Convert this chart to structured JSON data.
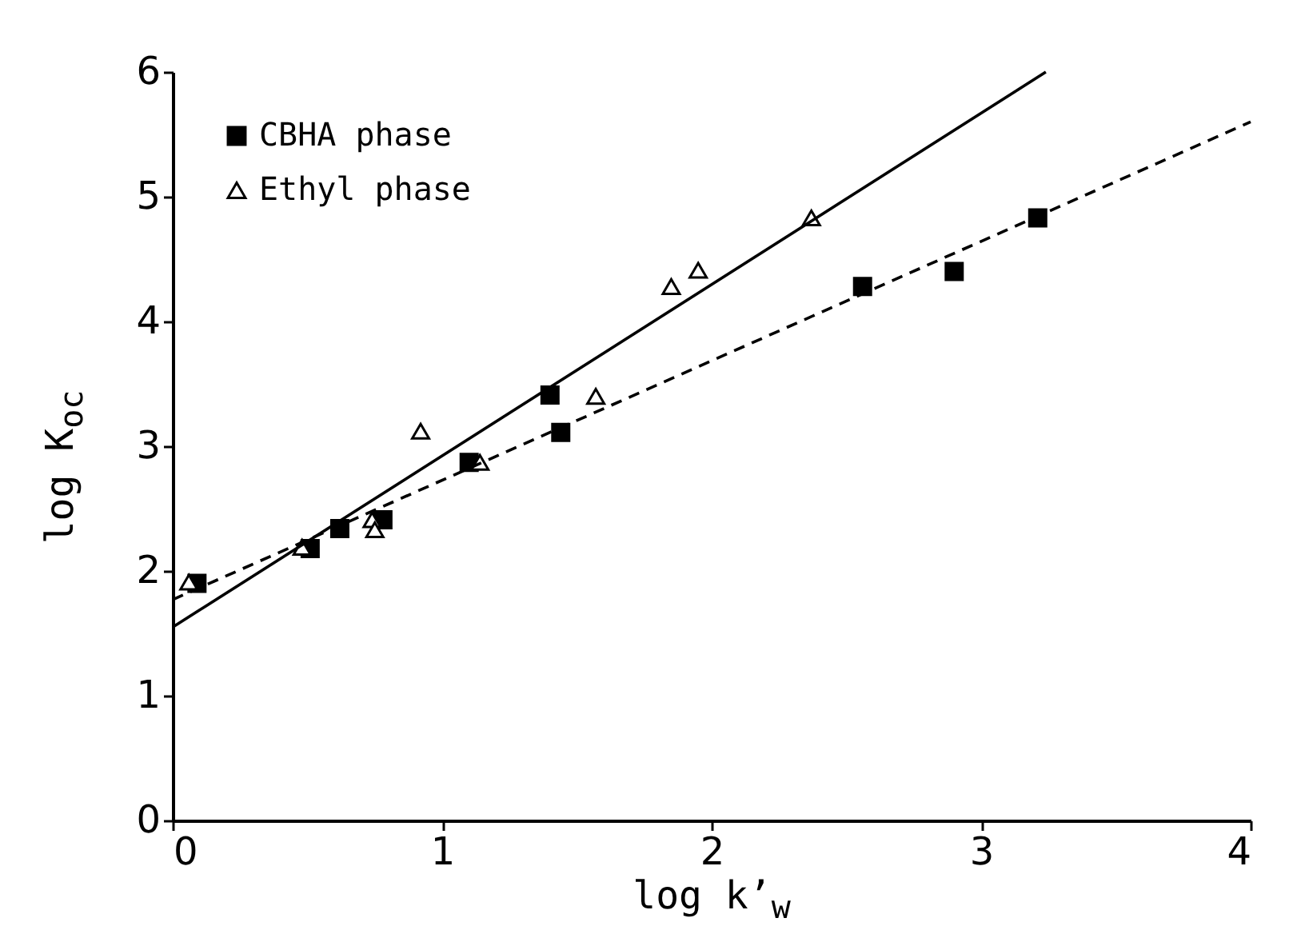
{
  "chart_data": {
    "type": "scatter",
    "xlabel": "log k’$_{w}$",
    "ylabel": "log K$_{oc}$",
    "xlim": [
      0,
      4
    ],
    "ylim": [
      0,
      6
    ],
    "xticks": [
      0,
      1,
      2,
      3,
      4
    ],
    "yticks": [
      0,
      1,
      2,
      3,
      4,
      5,
      6
    ],
    "grid": false,
    "legend": "top left",
    "series": [
      {
        "name": "CBHA phase",
        "color": "#000000",
        "marker": "square",
        "x": [
          0.09,
          0.51,
          0.62,
          0.78,
          1.1,
          1.4,
          1.44,
          2.56,
          2.9,
          3.21
        ],
        "values": [
          1.9,
          2.18,
          2.34,
          2.41,
          2.87,
          3.41,
          3.11,
          4.28,
          4.4,
          4.83
        ]
      },
      {
        "name": "Ethyl phase",
        "color": "#000000",
        "marker": "triangle",
        "x": [
          0.06,
          0.48,
          0.74,
          0.75,
          0.92,
          1.14,
          1.57,
          1.85,
          1.95,
          2.37
        ],
        "values": [
          1.91,
          2.19,
          2.41,
          2.33,
          3.12,
          2.87,
          3.4,
          4.28,
          4.41,
          4.83
        ]
      },
      {
        "type": "line",
        "color": "#000000",
        "line_style": "solid",
        "marker": "none",
        "x": [
          0,
          3.24
        ],
        "values": [
          1.55,
          6.0
        ]
      },
      {
        "type": "line",
        "color": "#000000",
        "line_style": "dashed",
        "marker": "none",
        "x": [
          0,
          4
        ],
        "values": [
          1.77,
          5.6
        ]
      }
    ]
  }
}
